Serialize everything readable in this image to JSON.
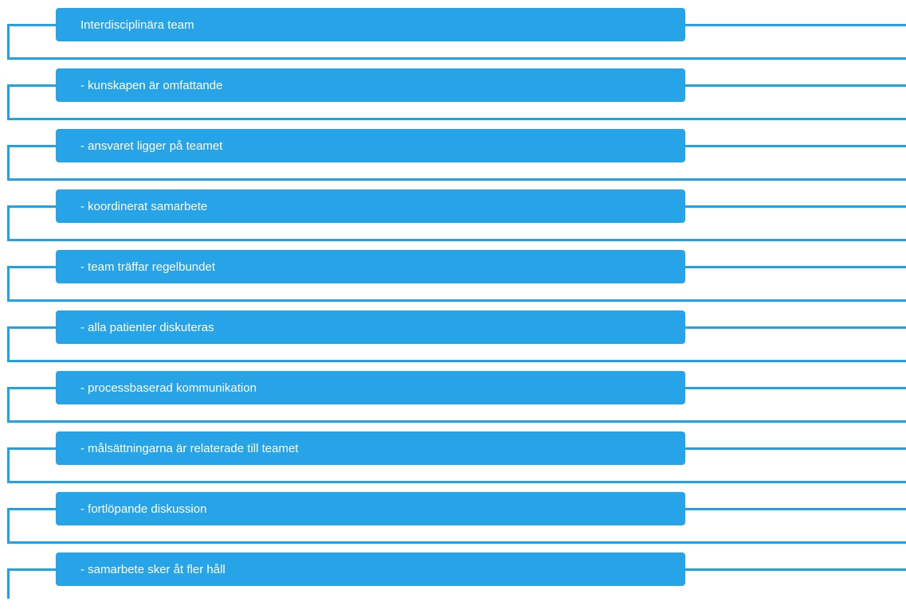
{
  "diagram": {
    "items": [
      {
        "label": "Interdisciplinära team"
      },
      {
        "label": "- kunskapen är omfattande"
      },
      {
        "label": "- ansvaret ligger på teamet"
      },
      {
        "label": "- koordinerat samarbete"
      },
      {
        "label": "- team träffar regelbundet"
      },
      {
        "label": "- alla patienter diskuteras"
      },
      {
        "label": "- processbaserad kommunikation"
      },
      {
        "label": "- målsättningarna är relaterade till teamet"
      },
      {
        "label": "- fortlöpande diskussion"
      },
      {
        "label": "- samarbete sker åt fler håll"
      }
    ],
    "colors": {
      "box": "#27a3e8",
      "connector": "#1fa2e6",
      "text": "#ffffff",
      "background": "#ffffff"
    }
  }
}
